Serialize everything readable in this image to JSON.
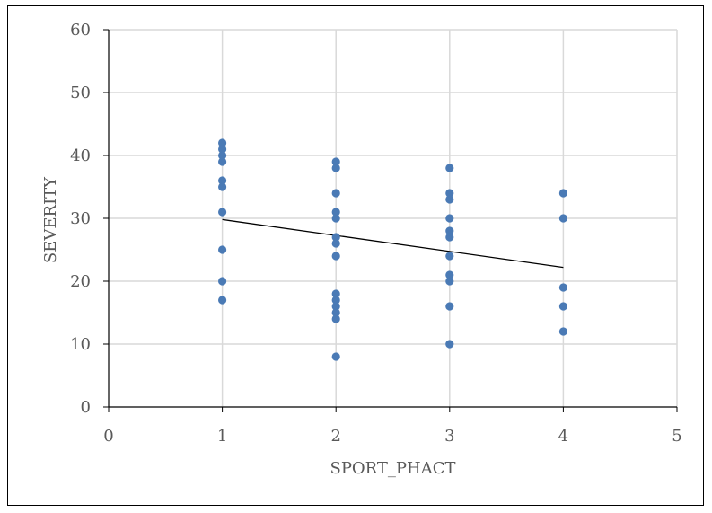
{
  "chart_data": {
    "type": "scatter",
    "title": "",
    "xlabel": "SPORT_PHACT",
    "ylabel": "SEVERITY",
    "xlim": [
      0,
      5
    ],
    "ylim": [
      0,
      60
    ],
    "x_ticks": [
      0,
      1,
      2,
      3,
      4,
      5
    ],
    "y_ticks": [
      0,
      10,
      20,
      30,
      40,
      50,
      60
    ],
    "grid": true,
    "legend": "none",
    "point_color": "#4a7ab5",
    "trendline_color": "#000000",
    "series": [
      {
        "points": [
          [
            1,
            42
          ],
          [
            1,
            41
          ],
          [
            1,
            40
          ],
          [
            1,
            39
          ],
          [
            1,
            36
          ],
          [
            1,
            35
          ],
          [
            1,
            31
          ],
          [
            1,
            25
          ],
          [
            1,
            20
          ],
          [
            1,
            17
          ],
          [
            2,
            39
          ],
          [
            2,
            38
          ],
          [
            2,
            34
          ],
          [
            2,
            31
          ],
          [
            2,
            30
          ],
          [
            2,
            27
          ],
          [
            2,
            26
          ],
          [
            2,
            24
          ],
          [
            2,
            18
          ],
          [
            2,
            17
          ],
          [
            2,
            16
          ],
          [
            2,
            15
          ],
          [
            2,
            14
          ],
          [
            2,
            8
          ],
          [
            3,
            38
          ],
          [
            3,
            34
          ],
          [
            3,
            33
          ],
          [
            3,
            30
          ],
          [
            3,
            28
          ],
          [
            3,
            27
          ],
          [
            3,
            24
          ],
          [
            3,
            21
          ],
          [
            3,
            20
          ],
          [
            3,
            16
          ],
          [
            3,
            10
          ],
          [
            4,
            34
          ],
          [
            4,
            30
          ],
          [
            4,
            19
          ],
          [
            4,
            16
          ],
          [
            4,
            12
          ]
        ]
      }
    ],
    "trendline": {
      "x": [
        1,
        4
      ],
      "y": [
        29.8,
        22.2
      ]
    }
  }
}
